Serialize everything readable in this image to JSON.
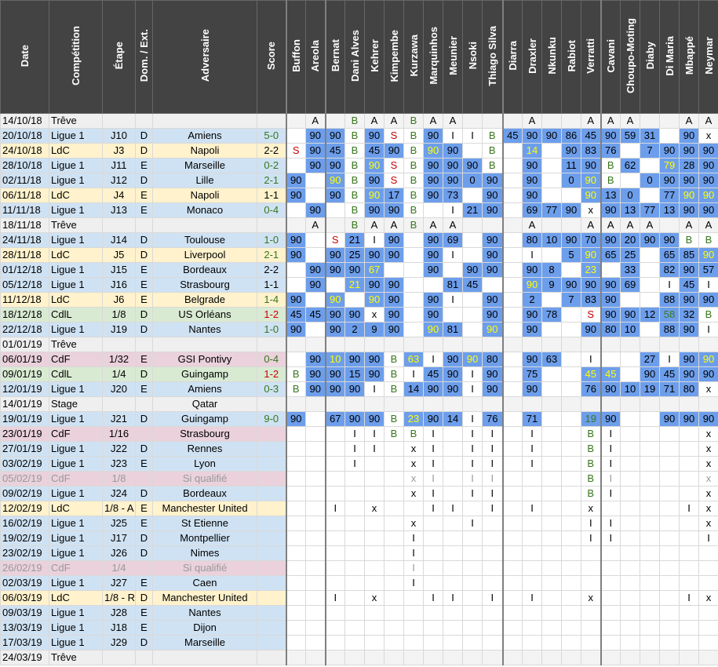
{
  "columns": [
    "Date",
    "Compétition",
    "Étape",
    "Dom. / Ext.",
    "Adversaire",
    "Score",
    "Buffon",
    "Areola",
    "Bernat",
    "Dani Alves",
    "Kehrer",
    "Kimpembe",
    "Kurzawa",
    "Marquinhos",
    "Meunier",
    "Nsoki",
    "Thiago Silva",
    "Diarra",
    "Draxler",
    "Nkunku",
    "Rabiot",
    "Verratti",
    "Cavani",
    "Choupo-Moting",
    "Diaby",
    "Di Maria",
    "Mbappé",
    "Neymar"
  ],
  "played_fill": "#6d9eeb",
  "text_colors": {
    "B": "#38761d",
    "S": "#cc0000"
  },
  "rows": [
    {
      "fill": "#efefef",
      "player_fill": "#f3f3f3",
      "cells": [
        "14/10/18",
        "Trêve",
        null,
        null,
        null,
        null,
        null,
        "A",
        null,
        "B",
        "A",
        "A",
        "B",
        "A",
        "A",
        null,
        null,
        null,
        "A",
        null,
        null,
        "A",
        "A",
        "A",
        null,
        null,
        "A",
        "A"
      ]
    },
    {
      "fill": "#cfe2f3",
      "score_color": "#38761d",
      "cells": [
        "20/10/18",
        "Ligue 1",
        "J10",
        "D",
        "Amiens",
        "5-0",
        null,
        90,
        90,
        "B",
        90,
        "S",
        "B",
        90,
        "I",
        "I",
        "B",
        45,
        90,
        90,
        86,
        45,
        90,
        59,
        31,
        null,
        90,
        "x"
      ]
    },
    {
      "fill": "#fff2cc",
      "score_color": "#000000",
      "cells": [
        "24/10/18",
        "LdC",
        "J3",
        "D",
        "Napoli",
        "2-2",
        "S",
        90,
        45,
        "B",
        45,
        90,
        "B",
        {
          "value": 90,
          "color": "#ffff00"
        },
        90,
        null,
        "B",
        null,
        {
          "value": 14,
          "color": "#ffff00"
        },
        null,
        90,
        83,
        76,
        null,
        7,
        90,
        90,
        90
      ]
    },
    {
      "fill": "#cfe2f3",
      "score_color": "#38761d",
      "cells": [
        "28/10/18",
        "Ligue 1",
        "J11",
        "E",
        "Marseille",
        "0-2",
        null,
        90,
        90,
        "B",
        {
          "value": 90,
          "color": "#ffff00"
        },
        "S",
        "B",
        90,
        90,
        90,
        "B",
        null,
        90,
        null,
        11,
        90,
        "B",
        62,
        null,
        {
          "value": 79,
          "color": "#ffff00"
        },
        28,
        90
      ]
    },
    {
      "fill": "#cfe2f3",
      "score_color": "#38761d",
      "cells": [
        "02/11/18",
        "Ligue 1",
        "J12",
        "D",
        "Lille",
        "2-1",
        90,
        null,
        {
          "value": 90,
          "color": "#ffff00"
        },
        "B",
        90,
        "S",
        "B",
        90,
        90,
        0,
        90,
        null,
        90,
        null,
        0,
        {
          "value": 90,
          "color": "#ffff00"
        },
        "B",
        null,
        0,
        90,
        90,
        90
      ]
    },
    {
      "fill": "#fff2cc",
      "score_color": "#000000",
      "cells": [
        "06/11/18",
        "LdC",
        "J4",
        "E",
        "Napoli",
        "1-1",
        90,
        null,
        90,
        "B",
        {
          "value": 90,
          "color": "#ffff00"
        },
        17,
        "B",
        90,
        73,
        null,
        90,
        null,
        90,
        null,
        null,
        {
          "value": 90,
          "color": "#ffff00"
        },
        13,
        0,
        null,
        77,
        {
          "value": 90,
          "color": "#ffff00"
        },
        {
          "value": 90,
          "color": "#ffff00"
        }
      ]
    },
    {
      "fill": "#cfe2f3",
      "score_color": "#38761d",
      "cells": [
        "11/11/18",
        "Ligue 1",
        "J13",
        "E",
        "Monaco",
        "0-4",
        null,
        90,
        null,
        "B",
        90,
        90,
        "B",
        null,
        "I",
        21,
        90,
        null,
        69,
        77,
        90,
        "x",
        90,
        13,
        77,
        13,
        90,
        90
      ]
    },
    {
      "fill": "#efefef",
      "player_fill": "#f3f3f3",
      "cells": [
        "18/11/18",
        "Trêve",
        null,
        null,
        null,
        null,
        null,
        "A",
        null,
        "B",
        "A",
        "A",
        "B",
        "A",
        "A",
        null,
        null,
        null,
        "A",
        null,
        null,
        "A",
        "A",
        "A",
        "A",
        null,
        "A",
        "A"
      ]
    },
    {
      "fill": "#cfe2f3",
      "score_color": "#38761d",
      "cells": [
        "24/11/18",
        "Ligue 1",
        "J14",
        "D",
        "Toulouse",
        "1-0",
        90,
        null,
        "S",
        21,
        "I",
        90,
        null,
        90,
        69,
        null,
        90,
        null,
        80,
        10,
        90,
        70,
        90,
        20,
        90,
        90,
        "B",
        "B"
      ]
    },
    {
      "fill": "#fff2cc",
      "score_color": "#38761d",
      "cells": [
        "28/11/18",
        "LdC",
        "J5",
        "D",
        "Liverpool",
        "2-1",
        90,
        null,
        90,
        25,
        90,
        90,
        null,
        90,
        "I",
        null,
        90,
        null,
        "I",
        null,
        5,
        {
          "value": 90,
          "color": "#ffff00"
        },
        65,
        25,
        null,
        65,
        85,
        {
          "value": 90,
          "color": "#ffff00"
        }
      ]
    },
    {
      "fill": "#cfe2f3",
      "score_color": "#000000",
      "cells": [
        "01/12/18",
        "Ligue 1",
        "J15",
        "E",
        "Bordeaux",
        "2-2",
        null,
        90,
        90,
        90,
        {
          "value": 67,
          "color": "#ffff00"
        },
        null,
        null,
        90,
        null,
        90,
        90,
        null,
        90,
        8,
        null,
        {
          "value": 23,
          "color": "#ffff00"
        },
        null,
        33,
        null,
        82,
        90,
        57
      ]
    },
    {
      "fill": "#cfe2f3",
      "score_color": "#000000",
      "cells": [
        "05/12/18",
        "Ligue 1",
        "J16",
        "E",
        "Strasbourg",
        "1-1",
        null,
        90,
        null,
        {
          "value": 21,
          "color": "#ffff00"
        },
        90,
        90,
        null,
        null,
        81,
        45,
        null,
        null,
        {
          "value": 90,
          "color": "#ffff00"
        },
        9,
        90,
        90,
        90,
        69,
        null,
        "I",
        45,
        "I"
      ]
    },
    {
      "fill": "#fff2cc",
      "score_color": "#38761d",
      "cells": [
        "11/12/18",
        "LdC",
        "J6",
        "E",
        "Belgrade",
        "1-4",
        90,
        null,
        {
          "value": 90,
          "color": "#ffff00"
        },
        null,
        {
          "value": 90,
          "color": "#ffff00"
        },
        90,
        null,
        90,
        "I",
        null,
        90,
        null,
        2,
        null,
        7,
        83,
        90,
        null,
        null,
        88,
        90,
        90
      ]
    },
    {
      "fill": "#d9ead3",
      "score_color": "#cc0000",
      "cells": [
        "18/12/18",
        "CdlL",
        "1/8",
        "D",
        "US Orléans",
        "1-2",
        45,
        45,
        90,
        90,
        "x",
        90,
        null,
        90,
        null,
        null,
        90,
        null,
        90,
        78,
        null,
        "S",
        90,
        90,
        12,
        {
          "value": 58,
          "color": "#38761d"
        },
        32,
        "B"
      ]
    },
    {
      "fill": "#cfe2f3",
      "score_color": "#38761d",
      "cells": [
        "22/12/18",
        "Ligue 1",
        "J19",
        "D",
        "Nantes",
        "1-0",
        90,
        null,
        90,
        2,
        9,
        90,
        null,
        {
          "value": 90,
          "color": "#ffff00"
        },
        81,
        null,
        {
          "value": 90,
          "color": "#ffff00"
        },
        null,
        90,
        null,
        null,
        90,
        80,
        10,
        null,
        88,
        90,
        "I"
      ]
    },
    {
      "fill": "#efefef",
      "player_fill": "#f3f3f3",
      "cells": [
        "01/01/19",
        "Trêve",
        null,
        null,
        null,
        null,
        null,
        null,
        null,
        null,
        null,
        null,
        null,
        null,
        null,
        null,
        null,
        null,
        null,
        null,
        null,
        null,
        null,
        null,
        null,
        null,
        null,
        null
      ]
    },
    {
      "fill": "#ead1dc",
      "score_color": "#38761d",
      "cells": [
        "06/01/19",
        "CdF",
        "1/32",
        "E",
        "GSI Pontivy",
        "0-4",
        null,
        90,
        {
          "value": 10,
          "color": "#ffff00"
        },
        90,
        90,
        "B",
        {
          "value": 63,
          "color": "#ffff00"
        },
        "I",
        90,
        {
          "value": 90,
          "color": "#ffff00"
        },
        80,
        null,
        90,
        63,
        null,
        "I",
        null,
        null,
        27,
        "I",
        90,
        {
          "value": 90,
          "color": "#ffff00"
        }
      ]
    },
    {
      "fill": "#d9ead3",
      "score_color": "#cc0000",
      "cells": [
        "09/01/19",
        "CdlL",
        "1/4",
        "D",
        "Guingamp",
        "1-2",
        "B",
        90,
        90,
        15,
        90,
        "B",
        "I",
        45,
        90,
        "I",
        90,
        null,
        75,
        null,
        null,
        {
          "value": 45,
          "color": "#ffff00"
        },
        {
          "value": 45,
          "color": "#ffff00"
        },
        null,
        90,
        45,
        90,
        90
      ]
    },
    {
      "fill": "#cfe2f3",
      "score_color": "#38761d",
      "cells": [
        "12/01/19",
        "Ligue 1",
        "J20",
        "E",
        "Amiens",
        "0-3",
        "B",
        90,
        90,
        90,
        "I",
        "B",
        14,
        90,
        90,
        "I",
        90,
        null,
        90,
        null,
        null,
        76,
        90,
        10,
        19,
        71,
        80,
        "x"
      ]
    },
    {
      "fill": "#efefef",
      "player_fill": "#f3f3f3",
      "cells": [
        "14/01/19",
        "Stage",
        null,
        null,
        "Qatar",
        null,
        null,
        null,
        null,
        null,
        null,
        null,
        null,
        null,
        null,
        null,
        null,
        null,
        null,
        null,
        null,
        null,
        null,
        null,
        null,
        null,
        null,
        null
      ]
    },
    {
      "fill": "#cfe2f3",
      "score_color": "#38761d",
      "cells": [
        "19/01/19",
        "Ligue 1",
        "J21",
        "D",
        "Guingamp",
        "9-0",
        90,
        null,
        67,
        90,
        90,
        "B",
        {
          "value": 23,
          "color": "#ffff00"
        },
        90,
        14,
        "I",
        76,
        null,
        71,
        null,
        null,
        {
          "value": 19,
          "color": "#38761d"
        },
        90,
        null,
        null,
        90,
        90,
        90
      ]
    },
    {
      "fill": "#ead1dc",
      "cells": [
        "23/01/19",
        "CdF",
        "1/16",
        null,
        "Strasbourg",
        null,
        null,
        null,
        null,
        "I",
        "I",
        "B",
        "B",
        "I",
        null,
        "I",
        "I",
        null,
        "I",
        null,
        null,
        "B",
        "I",
        null,
        null,
        null,
        null,
        "x"
      ]
    },
    {
      "fill": "#cfe2f3",
      "cells": [
        "27/01/19",
        "Ligue 1",
        "J22",
        "D",
        "Rennes",
        null,
        null,
        null,
        null,
        "I",
        "I",
        null,
        "x",
        "I",
        null,
        "I",
        "I",
        null,
        "I",
        null,
        null,
        "B",
        "I",
        null,
        null,
        null,
        null,
        "x"
      ]
    },
    {
      "fill": "#cfe2f3",
      "cells": [
        "03/02/19",
        "Ligue 1",
        "J23",
        "E",
        "Lyon",
        null,
        null,
        null,
        null,
        "I",
        null,
        null,
        "x",
        "I",
        null,
        "I",
        "I",
        null,
        "I",
        null,
        null,
        "B",
        "I",
        null,
        null,
        null,
        null,
        "x"
      ]
    },
    {
      "fill": "#ead1dc",
      "text_color": "#999999",
      "cells": [
        "05/02/19",
        "CdF",
        "1/8",
        null,
        "Si qualifié",
        null,
        null,
        null,
        null,
        null,
        null,
        null,
        "x",
        "I",
        null,
        "I",
        "I",
        null,
        null,
        null,
        null,
        "B",
        "I",
        null,
        null,
        null,
        null,
        "x"
      ]
    },
    {
      "fill": "#cfe2f3",
      "cells": [
        "09/02/19",
        "Ligue 1",
        "J24",
        "D",
        "Bordeaux",
        null,
        null,
        null,
        null,
        null,
        null,
        null,
        "x",
        "I",
        null,
        "I",
        "I",
        null,
        null,
        null,
        null,
        "B",
        "I",
        null,
        null,
        null,
        null,
        "x"
      ]
    },
    {
      "fill": "#fff2cc",
      "cells": [
        "12/02/19",
        "LdC",
        "1/8 - A",
        "E",
        "Manchester United",
        null,
        null,
        null,
        "I",
        null,
        "x",
        null,
        null,
        "I",
        "I",
        null,
        "I",
        null,
        "I",
        null,
        null,
        "x",
        null,
        null,
        null,
        null,
        "I",
        "x"
      ]
    },
    {
      "fill": "#cfe2f3",
      "cells": [
        "16/02/19",
        "Ligue 1",
        "J25",
        "E",
        "St Etienne",
        null,
        null,
        null,
        null,
        null,
        null,
        null,
        "x",
        null,
        null,
        "I",
        null,
        null,
        null,
        null,
        null,
        "I",
        "I",
        null,
        null,
        null,
        null,
        "x"
      ]
    },
    {
      "fill": "#cfe2f3",
      "cells": [
        "19/02/19",
        "Ligue 1",
        "J17",
        "D",
        "Montpellier",
        null,
        null,
        null,
        null,
        null,
        null,
        null,
        "I",
        null,
        null,
        null,
        null,
        null,
        null,
        null,
        null,
        "I",
        "I",
        null,
        null,
        null,
        null,
        "I"
      ]
    },
    {
      "fill": "#cfe2f3",
      "cells": [
        "23/02/19",
        "Ligue 1",
        "J26",
        "D",
        "Nimes",
        null,
        null,
        null,
        null,
        null,
        null,
        null,
        "I",
        null,
        null,
        null,
        null,
        null,
        null,
        null,
        null,
        null,
        null,
        null,
        null,
        null,
        null,
        null
      ]
    },
    {
      "fill": "#ead1dc",
      "text_color": "#999999",
      "cells": [
        "26/02/19",
        "CdF",
        "1/4",
        null,
        "Si qualifié",
        null,
        null,
        null,
        null,
        null,
        null,
        null,
        "I",
        null,
        null,
        null,
        null,
        null,
        null,
        null,
        null,
        null,
        null,
        null,
        null,
        null,
        null,
        null
      ]
    },
    {
      "fill": "#cfe2f3",
      "cells": [
        "02/03/19",
        "Ligue 1",
        "J27",
        "E",
        "Caen",
        null,
        null,
        null,
        null,
        null,
        null,
        null,
        "I",
        null,
        null,
        null,
        null,
        null,
        null,
        null,
        null,
        null,
        null,
        null,
        null,
        null,
        null,
        null
      ]
    },
    {
      "fill": "#fff2cc",
      "cells": [
        "06/03/19",
        "LdC",
        "1/8 - R",
        "D",
        "Manchester United",
        null,
        null,
        null,
        "I",
        null,
        "x",
        null,
        null,
        "I",
        "I",
        null,
        "I",
        null,
        "I",
        null,
        null,
        "x",
        null,
        null,
        null,
        null,
        "I",
        "x"
      ]
    },
    {
      "fill": "#cfe2f3",
      "cells": [
        "09/03/19",
        "Ligue 1",
        "J28",
        "E",
        "Nantes",
        null,
        null,
        null,
        null,
        null,
        null,
        null,
        null,
        null,
        null,
        null,
        null,
        null,
        null,
        null,
        null,
        null,
        null,
        null,
        null,
        null,
        null,
        null
      ]
    },
    {
      "fill": "#cfe2f3",
      "cells": [
        "13/03/19",
        "Ligue 1",
        "J18",
        "E",
        "Dijon",
        null,
        null,
        null,
        null,
        null,
        null,
        null,
        null,
        null,
        null,
        null,
        null,
        null,
        null,
        null,
        null,
        null,
        null,
        null,
        null,
        null,
        null,
        null
      ]
    },
    {
      "fill": "#cfe2f3",
      "cells": [
        "17/03/19",
        "Ligue 1",
        "J29",
        "D",
        "Marseille",
        null,
        null,
        null,
        null,
        null,
        null,
        null,
        null,
        null,
        null,
        null,
        null,
        null,
        null,
        null,
        null,
        null,
        null,
        null,
        null,
        null,
        null,
        null
      ]
    },
    {
      "fill": "#efefef",
      "player_fill": "#f3f3f3",
      "cells": [
        "24/03/19",
        "Trêve",
        null,
        null,
        null,
        null,
        null,
        null,
        null,
        null,
        null,
        null,
        null,
        null,
        null,
        null,
        null,
        null,
        null,
        null,
        null,
        null,
        null,
        null,
        null,
        null,
        null,
        null
      ]
    }
  ]
}
